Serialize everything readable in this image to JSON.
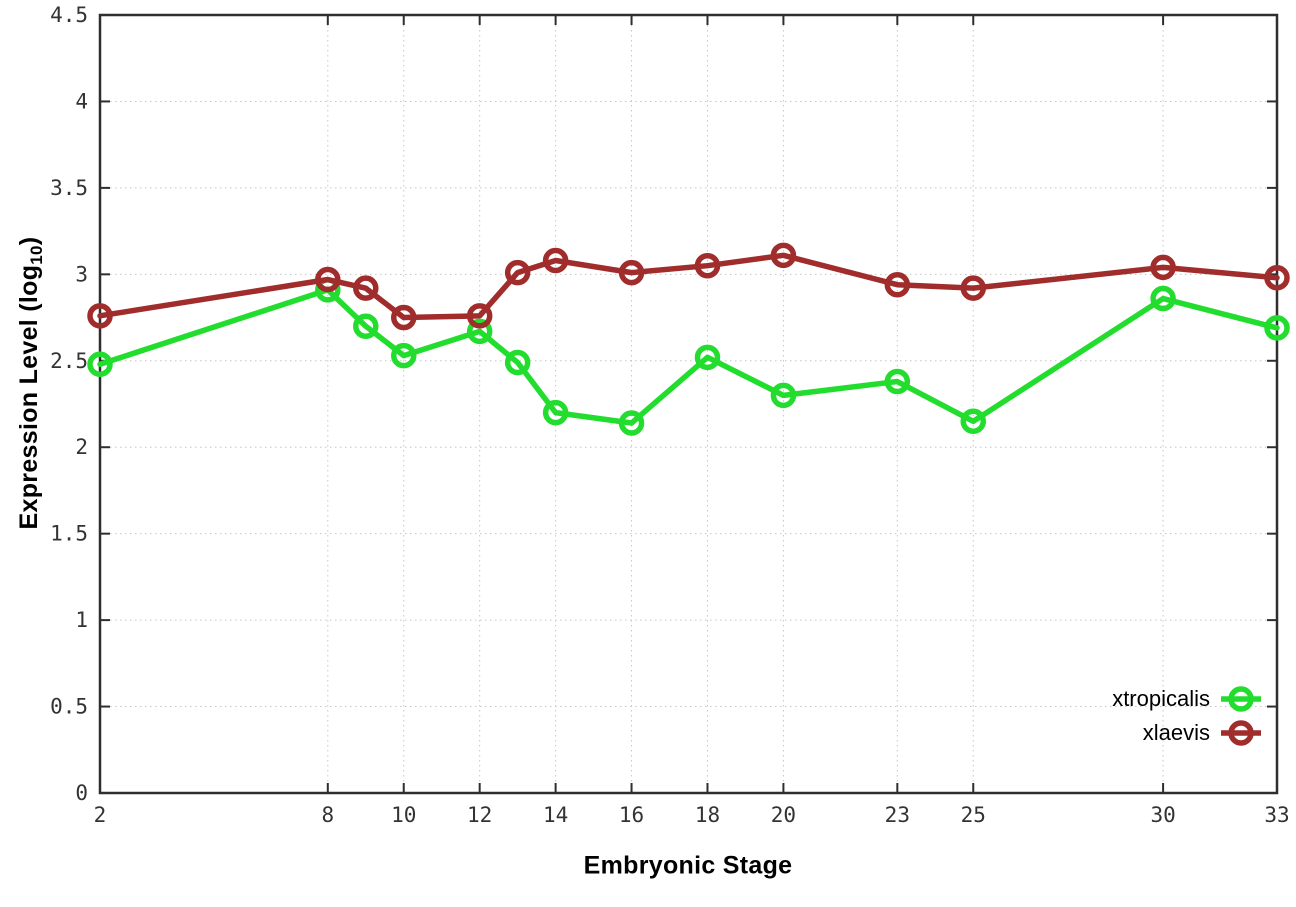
{
  "chart_data": {
    "type": "line",
    "title": "",
    "xlabel": "Embryonic Stage",
    "ylabel_prefix": "Expression Level (log",
    "ylabel_sub": "10",
    "ylabel_suffix": ")",
    "xlim": [
      2,
      33
    ],
    "ylim": [
      0,
      4.5
    ],
    "x_ticks": [
      2,
      8,
      10,
      12,
      14,
      16,
      18,
      20,
      23,
      25,
      30,
      33
    ],
    "x_tick_labels": [
      "2",
      "8",
      "10",
      "12",
      "14",
      "16",
      "18",
      "20",
      "23",
      "25",
      "30",
      "33"
    ],
    "y_ticks": [
      0,
      0.5,
      1,
      1.5,
      2,
      2.5,
      3,
      3.5,
      4,
      4.5
    ],
    "y_tick_labels": [
      "0",
      "0.5",
      "1",
      "1.5",
      "2",
      "2.5",
      "3",
      "3.5",
      "4",
      "4.5"
    ],
    "grid": true,
    "legend_position": "bottom-right-inside",
    "x": [
      2,
      8,
      9,
      10,
      12,
      13,
      14,
      16,
      18,
      20,
      23,
      25,
      30,
      33
    ],
    "series": [
      {
        "name": "xtropicalis",
        "color": "#22dd2e",
        "values": [
          2.48,
          2.91,
          2.7,
          2.53,
          2.67,
          2.49,
          2.2,
          2.14,
          2.52,
          2.3,
          2.38,
          2.15,
          2.86,
          2.69
        ]
      },
      {
        "name": "xlaevis",
        "color": "#a12c2c",
        "values": [
          2.76,
          2.97,
          2.92,
          2.75,
          2.76,
          3.01,
          3.08,
          3.01,
          3.05,
          3.11,
          2.94,
          2.92,
          3.04,
          2.98
        ]
      }
    ],
    "colors": {
      "axis": "#2e2e2e",
      "grid": "#c6c6c6",
      "tick_text": "#333333",
      "background": "#ffffff"
    }
  }
}
